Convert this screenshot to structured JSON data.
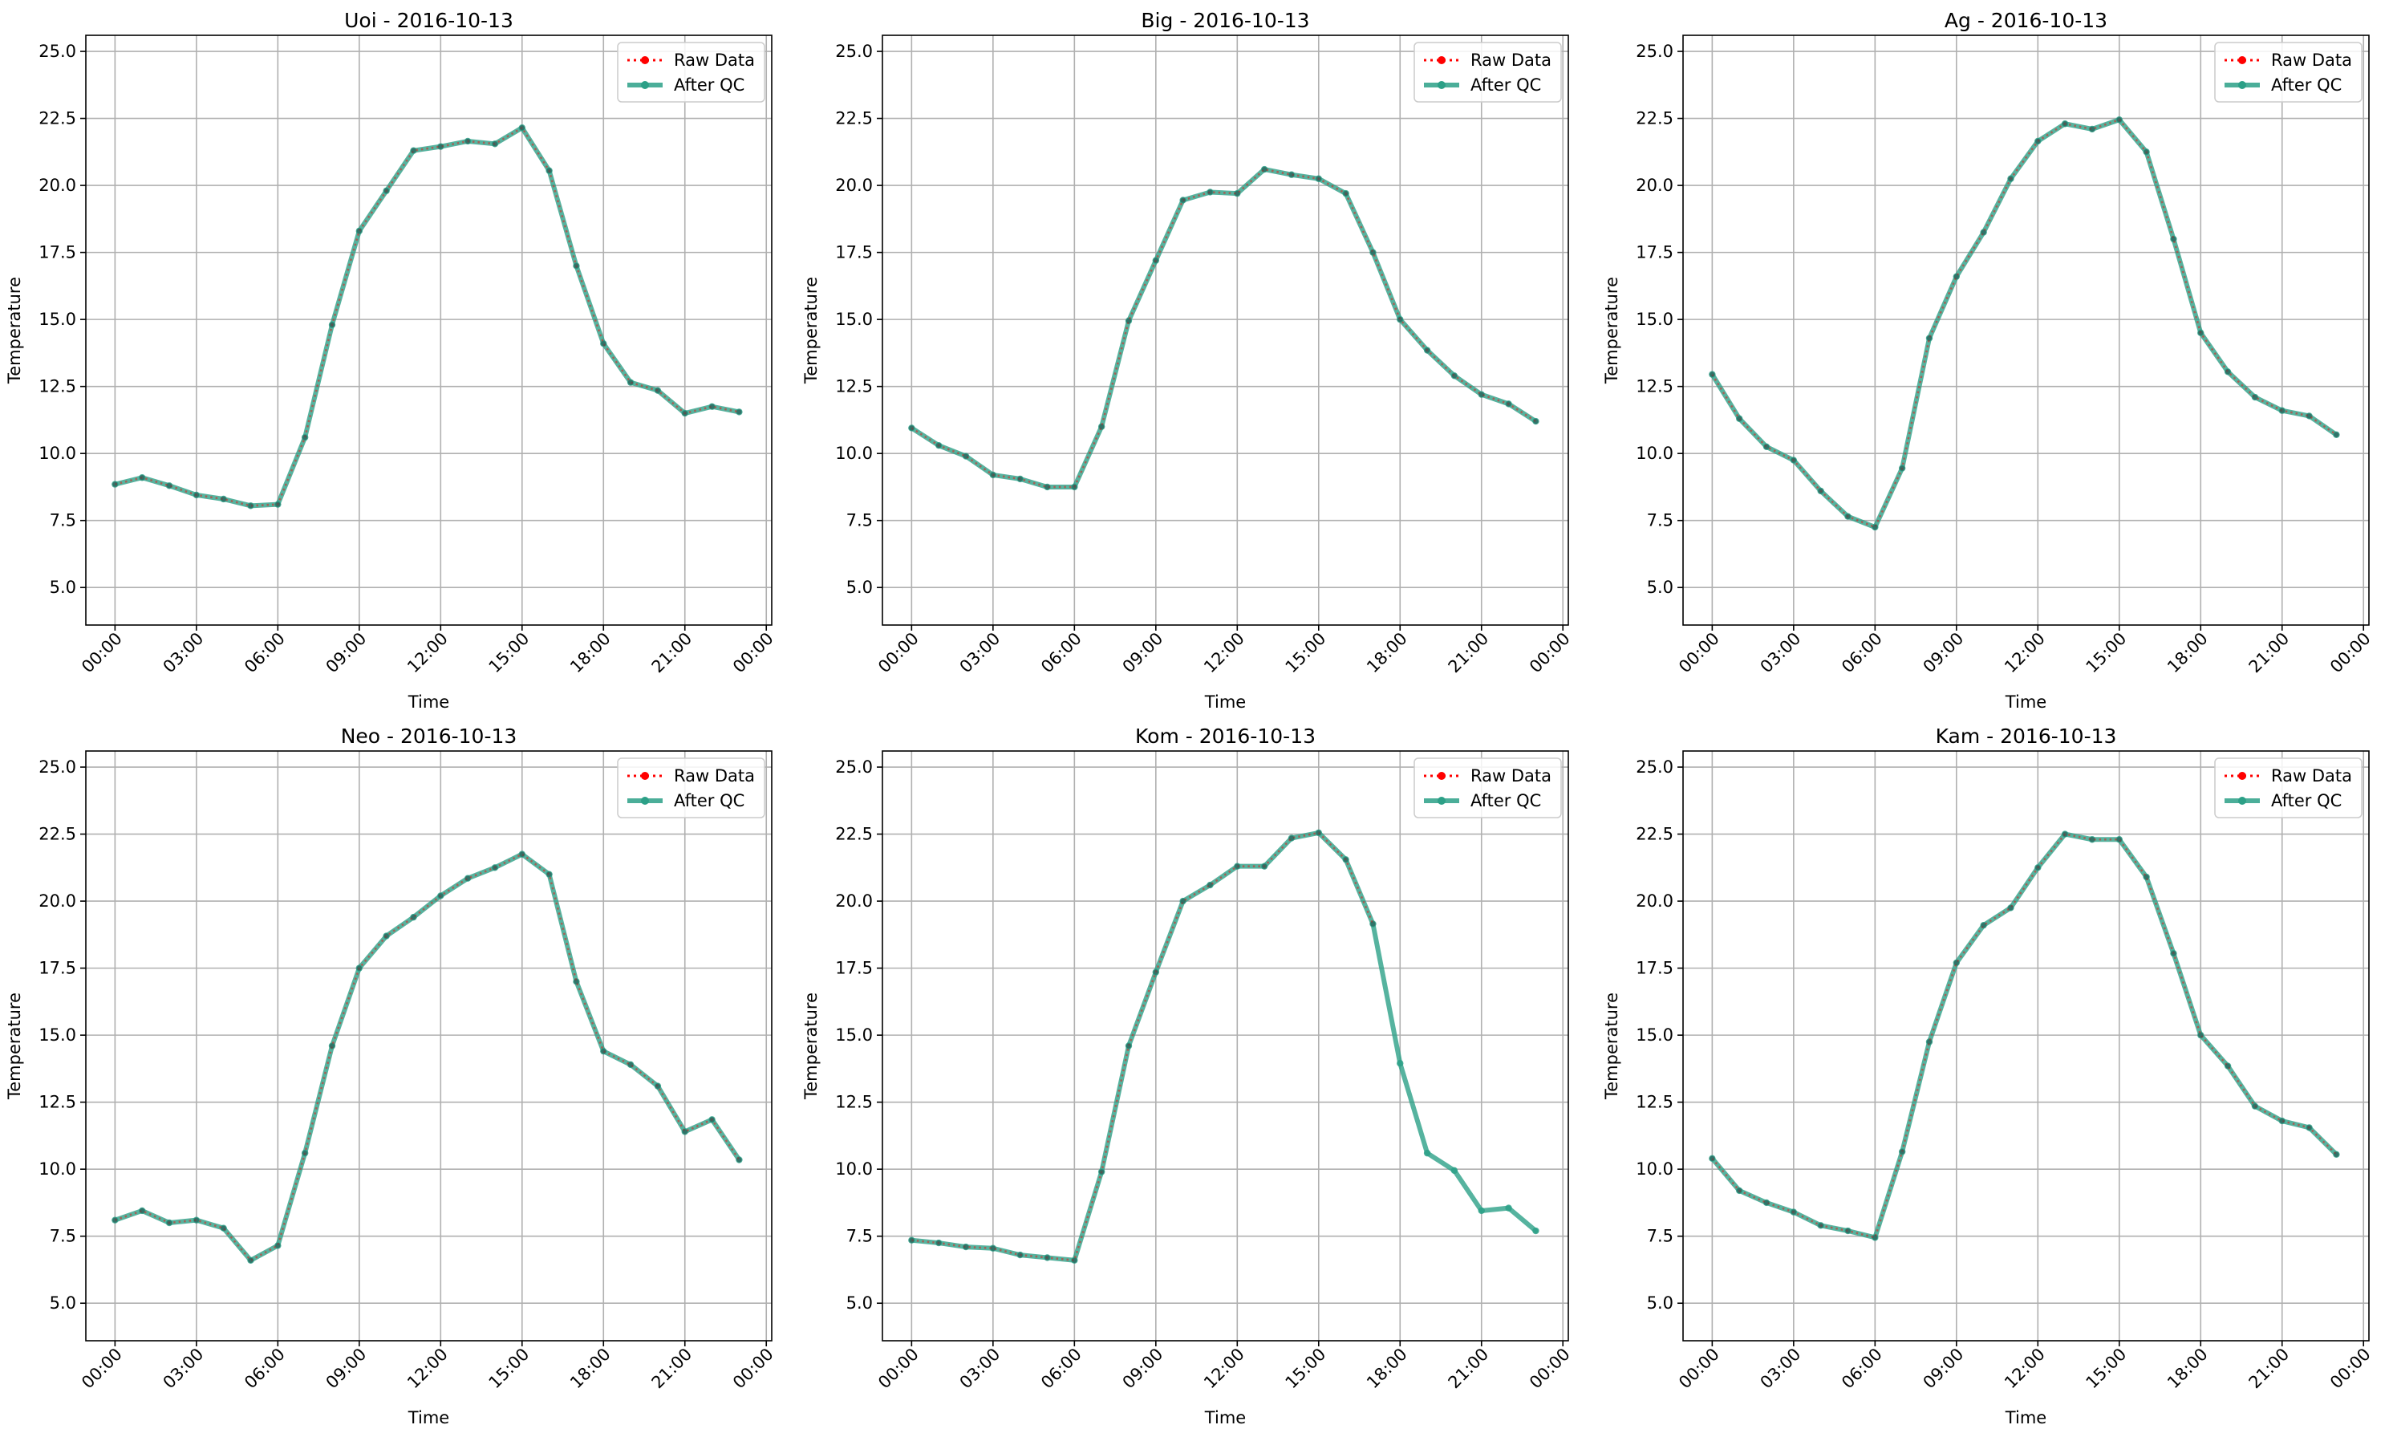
{
  "figure": {
    "xlabel": "Time",
    "ylabel": "Temperature",
    "legend": {
      "raw_label": "Raw Data",
      "qc_label": "After QC"
    },
    "colors": {
      "raw": "#ff0000",
      "qc": "#2ca087",
      "grid": "#b0b0b0"
    }
  },
  "chart_data": [
    {
      "type": "line",
      "title": "Uoi - 2016-10-13",
      "xlabel": "Time",
      "ylabel": "Temperature",
      "x": [
        "00:00",
        "01:00",
        "02:00",
        "03:00",
        "04:00",
        "05:00",
        "06:00",
        "07:00",
        "08:00",
        "09:00",
        "10:00",
        "11:00",
        "12:00",
        "13:00",
        "14:00",
        "15:00",
        "16:00",
        "17:00",
        "18:00",
        "19:00",
        "20:00",
        "21:00",
        "22:00",
        "23:00"
      ],
      "xticks": [
        "00:00",
        "03:00",
        "06:00",
        "09:00",
        "12:00",
        "15:00",
        "18:00",
        "21:00",
        "00:00"
      ],
      "yticks": [
        "5.0",
        "7.5",
        "10.0",
        "12.5",
        "15.0",
        "17.5",
        "20.0",
        "22.5",
        "25.0"
      ],
      "ylim": [
        3.6,
        25.6
      ],
      "grid": true,
      "legend_position": "top-right",
      "series": [
        {
          "name": "Raw Data",
          "values": [
            8.85,
            9.1,
            8.8,
            8.45,
            8.3,
            8.05,
            8.1,
            10.6,
            14.8,
            18.3,
            19.8,
            21.3,
            21.45,
            21.65,
            21.55,
            22.15,
            20.55,
            17.0,
            14.1,
            12.65,
            12.35,
            11.5,
            11.75,
            11.55
          ]
        },
        {
          "name": "After QC",
          "values": [
            8.85,
            9.1,
            8.8,
            8.45,
            8.3,
            8.05,
            8.1,
            10.6,
            14.8,
            18.3,
            19.8,
            21.3,
            21.45,
            21.65,
            21.55,
            22.15,
            20.55,
            17.0,
            14.1,
            12.65,
            12.35,
            11.5,
            11.75,
            11.55
          ]
        }
      ]
    },
    {
      "type": "line",
      "title": "Big - 2016-10-13",
      "xlabel": "Time",
      "ylabel": "Temperature",
      "x": [
        "00:00",
        "01:00",
        "02:00",
        "03:00",
        "04:00",
        "05:00",
        "06:00",
        "07:00",
        "08:00",
        "09:00",
        "10:00",
        "11:00",
        "12:00",
        "13:00",
        "14:00",
        "15:00",
        "16:00",
        "17:00",
        "18:00",
        "19:00",
        "20:00",
        "21:00",
        "22:00",
        "23:00"
      ],
      "xticks": [
        "00:00",
        "03:00",
        "06:00",
        "09:00",
        "12:00",
        "15:00",
        "18:00",
        "21:00",
        "00:00"
      ],
      "yticks": [
        "5.0",
        "7.5",
        "10.0",
        "12.5",
        "15.0",
        "17.5",
        "20.0",
        "22.5",
        "25.0"
      ],
      "ylim": [
        3.6,
        25.6
      ],
      "grid": true,
      "legend_position": "top-right",
      "series": [
        {
          "name": "Raw Data",
          "values": [
            10.95,
            10.3,
            9.9,
            9.2,
            9.05,
            8.75,
            8.75,
            11.0,
            14.95,
            17.2,
            19.45,
            19.75,
            19.7,
            20.6,
            20.4,
            20.25,
            19.7,
            17.5,
            15.0,
            13.85,
            12.9,
            12.2,
            11.85,
            11.2
          ]
        },
        {
          "name": "After QC",
          "values": [
            10.95,
            10.3,
            9.9,
            9.2,
            9.05,
            8.75,
            8.75,
            11.0,
            14.95,
            17.2,
            19.45,
            19.75,
            19.7,
            20.6,
            20.4,
            20.25,
            19.7,
            17.5,
            15.0,
            13.85,
            12.9,
            12.2,
            11.85,
            11.2
          ]
        }
      ]
    },
    {
      "type": "line",
      "title": "Ag - 2016-10-13",
      "xlabel": "Time",
      "ylabel": "Temperature",
      "x": [
        "00:00",
        "01:00",
        "02:00",
        "03:00",
        "04:00",
        "05:00",
        "06:00",
        "07:00",
        "08:00",
        "09:00",
        "10:00",
        "11:00",
        "12:00",
        "13:00",
        "14:00",
        "15:00",
        "16:00",
        "17:00",
        "18:00",
        "19:00",
        "20:00",
        "21:00",
        "22:00",
        "23:00"
      ],
      "xticks": [
        "00:00",
        "03:00",
        "06:00",
        "09:00",
        "12:00",
        "15:00",
        "18:00",
        "21:00",
        "00:00"
      ],
      "yticks": [
        "5.0",
        "7.5",
        "10.0",
        "12.5",
        "15.0",
        "17.5",
        "20.0",
        "22.5",
        "25.0"
      ],
      "ylim": [
        3.6,
        25.6
      ],
      "grid": true,
      "legend_position": "top-right",
      "series": [
        {
          "name": "Raw Data",
          "values": [
            12.95,
            11.3,
            10.25,
            9.75,
            8.6,
            7.65,
            7.25,
            9.45,
            14.3,
            16.6,
            18.25,
            20.25,
            21.65,
            22.3,
            22.1,
            22.45,
            21.25,
            18.0,
            14.5,
            13.05,
            12.1,
            11.6,
            11.4,
            10.7
          ]
        },
        {
          "name": "After QC",
          "values": [
            12.95,
            11.3,
            10.25,
            9.75,
            8.6,
            7.65,
            7.25,
            9.45,
            14.3,
            16.6,
            18.25,
            20.25,
            21.65,
            22.3,
            22.1,
            22.45,
            21.25,
            18.0,
            14.5,
            13.05,
            12.1,
            11.6,
            11.4,
            10.7
          ]
        }
      ]
    },
    {
      "type": "line",
      "title": "Neo - 2016-10-13",
      "xlabel": "Time",
      "ylabel": "Temperature",
      "x": [
        "00:00",
        "01:00",
        "02:00",
        "03:00",
        "04:00",
        "05:00",
        "06:00",
        "07:00",
        "08:00",
        "09:00",
        "10:00",
        "11:00",
        "12:00",
        "13:00",
        "14:00",
        "15:00",
        "16:00",
        "17:00",
        "18:00",
        "19:00",
        "20:00",
        "21:00",
        "22:00",
        "23:00"
      ],
      "xticks": [
        "00:00",
        "03:00",
        "06:00",
        "09:00",
        "12:00",
        "15:00",
        "18:00",
        "21:00",
        "00:00"
      ],
      "yticks": [
        "5.0",
        "7.5",
        "10.0",
        "12.5",
        "15.0",
        "17.5",
        "20.0",
        "22.5",
        "25.0"
      ],
      "ylim": [
        3.6,
        25.6
      ],
      "grid": true,
      "legend_position": "top-right",
      "series": [
        {
          "name": "Raw Data",
          "values": [
            8.1,
            8.45,
            8.0,
            8.1,
            7.8,
            6.6,
            7.15,
            10.6,
            14.6,
            17.5,
            18.7,
            19.4,
            20.2,
            20.85,
            21.25,
            21.75,
            21.0,
            17.0,
            14.4,
            13.9,
            13.1,
            11.4,
            11.85,
            10.35
          ]
        },
        {
          "name": "After QC",
          "values": [
            8.1,
            8.45,
            8.0,
            8.1,
            7.8,
            6.6,
            7.15,
            10.6,
            14.6,
            17.5,
            18.7,
            19.4,
            20.2,
            20.85,
            21.25,
            21.75,
            21.0,
            17.0,
            14.4,
            13.9,
            13.1,
            11.4,
            11.85,
            10.35
          ]
        }
      ]
    },
    {
      "type": "line",
      "title": "Kom - 2016-10-13",
      "xlabel": "Time",
      "ylabel": "Temperature",
      "x": [
        "00:00",
        "01:00",
        "02:00",
        "03:00",
        "04:00",
        "05:00",
        "06:00",
        "07:00",
        "08:00",
        "09:00",
        "10:00",
        "11:00",
        "12:00",
        "13:00",
        "14:00",
        "15:00",
        "16:00",
        "17:00",
        "18:00",
        "19:00",
        "20:00",
        "21:00",
        "22:00",
        "23:00"
      ],
      "xticks": [
        "00:00",
        "03:00",
        "06:00",
        "09:00",
        "12:00",
        "15:00",
        "18:00",
        "21:00",
        "00:00"
      ],
      "yticks": [
        "5.0",
        "7.5",
        "10.0",
        "12.5",
        "15.0",
        "17.5",
        "20.0",
        "22.5",
        "25.0"
      ],
      "ylim": [
        3.6,
        25.6
      ],
      "grid": true,
      "legend_position": "top-right",
      "series": [
        {
          "name": "Raw Data",
          "values": [
            7.35,
            7.25,
            7.1,
            7.05,
            6.8,
            6.7,
            6.6,
            9.9,
            14.6,
            17.35,
            20.0,
            20.6,
            21.3,
            21.3,
            22.35,
            22.55,
            21.55,
            19.15,
            null,
            null,
            null,
            null,
            null,
            null
          ]
        },
        {
          "name": "After QC",
          "values": [
            7.35,
            7.25,
            7.1,
            7.05,
            6.8,
            6.7,
            6.6,
            9.9,
            14.6,
            17.35,
            20.0,
            20.6,
            21.3,
            21.3,
            22.35,
            22.55,
            21.55,
            19.15,
            13.95,
            10.6,
            9.95,
            8.45,
            8.55,
            7.7
          ]
        }
      ]
    },
    {
      "type": "line",
      "title": "Kam - 2016-10-13",
      "xlabel": "Time",
      "ylabel": "Temperature",
      "x": [
        "00:00",
        "01:00",
        "02:00",
        "03:00",
        "04:00",
        "05:00",
        "06:00",
        "07:00",
        "08:00",
        "09:00",
        "10:00",
        "11:00",
        "12:00",
        "13:00",
        "14:00",
        "15:00",
        "16:00",
        "17:00",
        "18:00",
        "19:00",
        "20:00",
        "21:00",
        "22:00",
        "23:00"
      ],
      "xticks": [
        "00:00",
        "03:00",
        "06:00",
        "09:00",
        "12:00",
        "15:00",
        "18:00",
        "21:00",
        "00:00"
      ],
      "yticks": [
        "5.0",
        "7.5",
        "10.0",
        "12.5",
        "15.0",
        "17.5",
        "20.0",
        "22.5",
        "25.0"
      ],
      "ylim": [
        3.6,
        25.6
      ],
      "grid": true,
      "legend_position": "top-right",
      "series": [
        {
          "name": "Raw Data",
          "values": [
            10.4,
            9.2,
            8.75,
            8.4,
            7.9,
            7.7,
            7.45,
            10.65,
            14.75,
            17.7,
            19.1,
            19.75,
            21.25,
            22.5,
            22.3,
            22.3,
            20.9,
            18.05,
            15.0,
            13.85,
            12.35,
            11.8,
            11.55,
            10.55
          ]
        },
        {
          "name": "After QC",
          "values": [
            10.4,
            9.2,
            8.75,
            8.4,
            7.9,
            7.7,
            7.45,
            10.65,
            14.75,
            17.7,
            19.1,
            19.75,
            21.25,
            22.5,
            22.3,
            22.3,
            20.9,
            18.05,
            15.0,
            13.85,
            12.35,
            11.8,
            11.55,
            10.55
          ]
        }
      ]
    }
  ]
}
